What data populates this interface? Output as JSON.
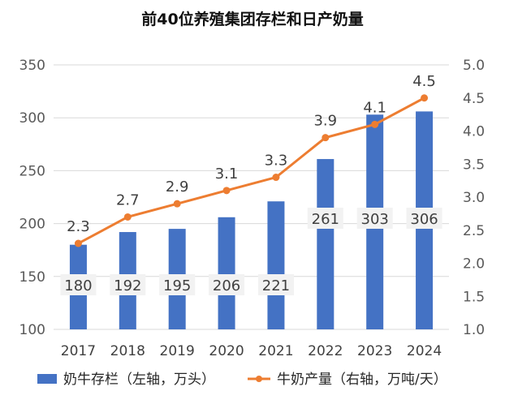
{
  "chart_data": {
    "type": "bar",
    "title": "前40位养殖集团存栏和日产奶量",
    "categories": [
      "2017",
      "2018",
      "2019",
      "2020",
      "2021",
      "2022",
      "2023",
      "2024"
    ],
    "series": [
      {
        "name": "奶牛存栏（左轴，万头）",
        "type": "bar",
        "axis": "left",
        "color": "#4472C4",
        "values": [
          180,
          192,
          195,
          206,
          221,
          261,
          303,
          306
        ]
      },
      {
        "name": "牛奶产量（右轴，万吨/天）",
        "type": "line",
        "axis": "right",
        "color": "#ED7D31",
        "values": [
          2.3,
          2.7,
          2.9,
          3.1,
          3.3,
          3.9,
          4.1,
          4.5
        ]
      }
    ],
    "y_left": {
      "min": 100,
      "max": 350,
      "ticks": [
        100,
        150,
        200,
        250,
        300,
        350
      ]
    },
    "y_right": {
      "min": 1.0,
      "max": 5.0,
      "ticks": [
        "1.0",
        "1.5",
        "2.0",
        "2.5",
        "3.0",
        "3.5",
        "4.0",
        "4.5",
        "5.0"
      ]
    },
    "legend": "bottom",
    "grid": true,
    "colors": {
      "grid": "#D9D9D9",
      "label_bg": "#F2F2F2"
    }
  }
}
